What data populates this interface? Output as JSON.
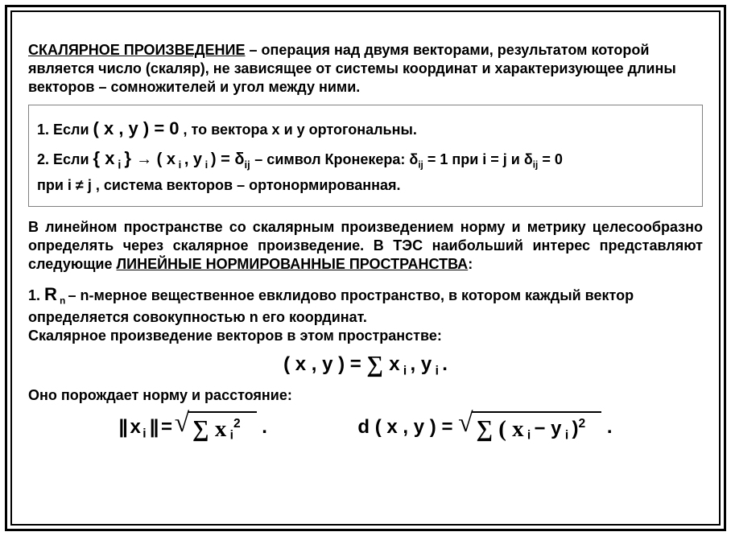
{
  "title": {
    "term": "СКАЛЯРНОЕ ПРОИЗВЕДЕНИЕ",
    "rest": " – операция над двумя векторами, результатом которой является число (скаляр), не зависящее от системы координат и характеризующее длины векторов – сомножителей и угол между ними."
  },
  "rules": {
    "r1_a": "1. Если ",
    "r1_math": "( x , y )  =  0",
    "r1_b": "  , то вектора x и y ортогональны.",
    "r2_a": "2. Если ",
    "r2_set_open": "{ x",
    "r2_set_sub": " i ",
    "r2_set_close": "}",
    "r2_arrow": " →  ( x",
    "r2_arrow_sub1": " i ",
    "r2_comma": ", y",
    "r2_arrow_sub2": " i ",
    "r2_paren_eq": ")  =  δ",
    "r2_delta_sub": "ij",
    "r2_kron": " – символ Кронекера:  δ",
    "r2_delta2_sub": "ij",
    "r2_eq1": "  =  1 при  i  =  j    и δ",
    "r2_delta3_sub": "ij",
    "r2_eq0": "  =  0",
    "r2_line2a": "при i  ≠   j",
    "r2_line2b": "  , система векторов – ортонормированная."
  },
  "mid": {
    "a": "В линейном пространстве со скалярным произведением норму и метрику целесообразно определять через скалярное произведение. В ТЭС наибольший интерес представляют следующие ",
    "u": "ЛИНЕЙНЫЕ НОРМИРОВАННЫЕ ПРОСТРАНСТВА",
    "b": ":"
  },
  "rn": {
    "prefix": " 1. ",
    "R": "R",
    "n": " n ",
    "line1": " – n-мерное вещественное евклидово пространство, в котором каждый вектор определяется совокупностью n его координат.",
    "line2": "Скалярное произведение векторов в этом пространстве:"
  },
  "eq1": {
    "lhs": "( x , y )  = ",
    "sigma": " ∑ ",
    "x": "x",
    "isub": " i ",
    "comma": ", y",
    "isub2": " i ",
    "dot": " ."
  },
  "normline": "Оно порождает норму и расстояние:",
  "eq2": {
    "norm_open": "|| x",
    "norm_sub": " i ",
    "norm_close": "||  =  ",
    "sigma": " ∑  x",
    "x_sub": " i",
    "sq": "2",
    "dot": " .",
    "d_lhs": "d ( x , y )  =  ",
    "d_sig": " ∑  ( x",
    "d_xi": " i ",
    "d_minus": " −  y",
    "d_yi": " i ",
    "d_paren": ")",
    "d_sq": "2",
    "d_dot": " ."
  },
  "style": {
    "text_color": "#000000",
    "bg": "#ffffff",
    "border_color": "#000000",
    "box_border": "#808080",
    "body_font_size": 18,
    "math_font_size": 24
  }
}
